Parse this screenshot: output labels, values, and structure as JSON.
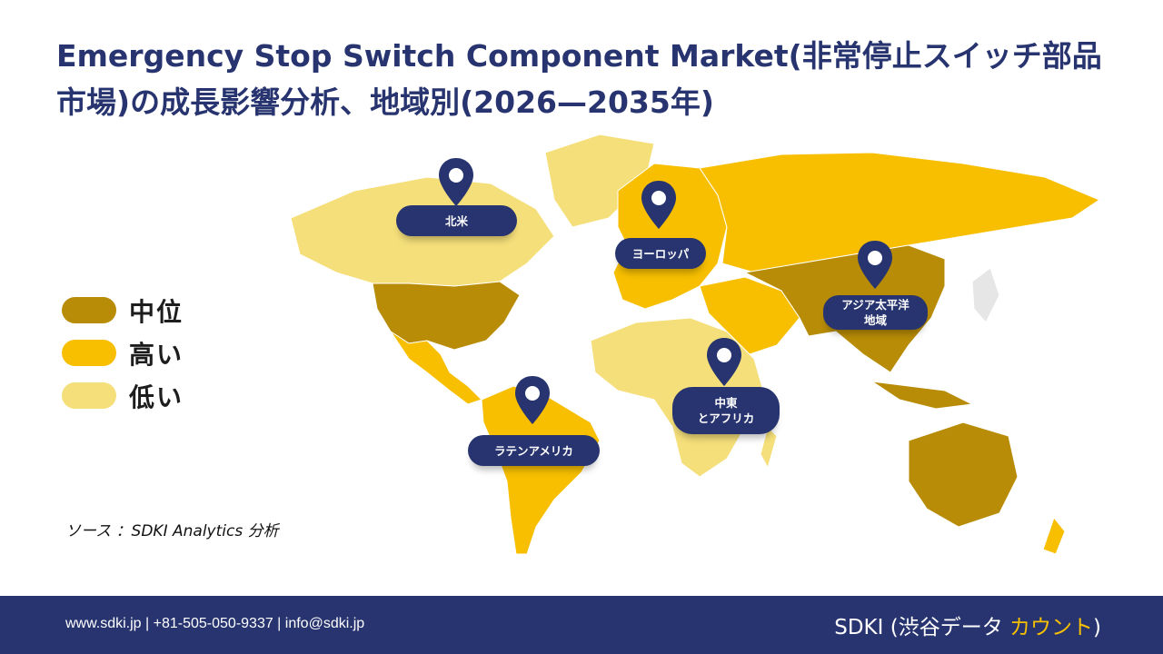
{
  "title": "Emergency Stop Switch Component Market(非常停止スイッチ部品市場)の成長影響分析、地域別(2026—2035年)",
  "legend": [
    {
      "label": "中位",
      "color": "#b88c06"
    },
    {
      "label": "高い",
      "color": "#f7bf00"
    },
    {
      "label": "低い",
      "color": "#f5df7a"
    }
  ],
  "regions": {
    "north_america": "北米",
    "europe": "ヨーロッパ",
    "asia_pacific": "アジア太平洋\n地域",
    "middle_east_africa": "中東\nとアフリカ",
    "latin_america": "ラテンアメリカ"
  },
  "source": "ソース ：SDKI Analytics 分析",
  "footer": {
    "contact": "www.sdki.jp | +81-505-050-9337 | info@sdki.jp",
    "brand_prefix": "SDKI (渋谷データ ",
    "brand_accent": "カウント",
    "brand_suffix": ")"
  },
  "colors": {
    "navy": "#27346f",
    "medium": "#b88c06",
    "high": "#f7bf00",
    "low": "#f5df7a"
  }
}
